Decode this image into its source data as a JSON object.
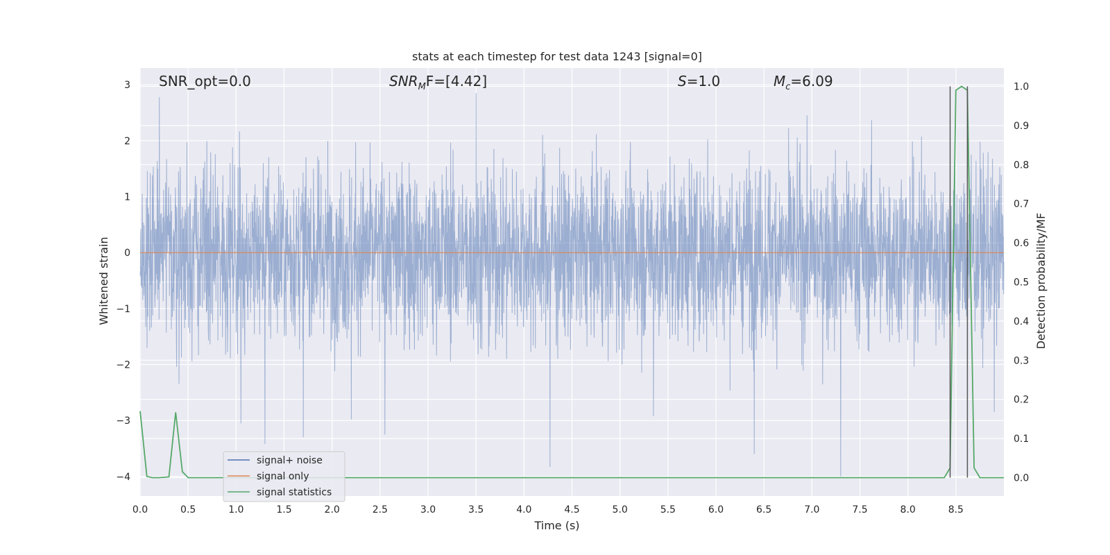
{
  "chart_data": {
    "type": "line",
    "title": "stats at each timestep for test data 1243 [signal=0]",
    "xlabel": "Time (s)",
    "ylabel": "Whitened strain",
    "y2label": "Detection probability/MF",
    "xlim": [
      0.0,
      9.0
    ],
    "ylim": [
      -4.35,
      3.3
    ],
    "y2lim": [
      -0.047,
      1.047
    ],
    "x_ticks": [
      0.0,
      0.5,
      1.0,
      1.5,
      2.0,
      2.5,
      3.0,
      3.5,
      4.0,
      4.5,
      5.0,
      5.5,
      6.0,
      6.5,
      7.0,
      7.5,
      8.0,
      8.5
    ],
    "x_tick_labels": [
      "0.0",
      "0.5",
      "1.0",
      "1.5",
      "2.0",
      "2.5",
      "3.0",
      "3.5",
      "4.0",
      "4.5",
      "5.0",
      "5.5",
      "6.0",
      "6.5",
      "7.0",
      "7.5",
      "8.0",
      "8.5"
    ],
    "y_ticks": [
      3,
      2,
      1,
      0,
      -1,
      -2,
      -3,
      -4
    ],
    "y_tick_labels": [
      "3",
      "2",
      "1",
      "0",
      "−1",
      "−2",
      "−3",
      "−4"
    ],
    "y2_ticks": [
      1.0,
      0.9,
      0.8,
      0.7,
      0.6,
      0.5,
      0.4,
      0.3,
      0.2,
      0.1,
      0.0
    ],
    "y2_tick_labels": [
      "1.0",
      "0.9",
      "0.8",
      "0.7",
      "0.6",
      "0.5",
      "0.4",
      "0.3",
      "0.2",
      "0.1",
      "0.0"
    ],
    "grid": true,
    "legend": {
      "placement": "lower-left",
      "entries": [
        {
          "label": "signal+ noise",
          "color": "#4c72b0"
        },
        {
          "label": "signal only",
          "color": "#dd8452"
        },
        {
          "label": "signal statistics",
          "color": "#55a868"
        }
      ]
    },
    "annotations": [
      {
        "prefix": "SNR_opt=0.0",
        "sub": "",
        "suffix": ""
      },
      {
        "prefix": "SNR",
        "sub": "M",
        "suffix": "F=[4.42]"
      },
      {
        "prefix": "S",
        "sub": "",
        "suffix": "=1.0"
      },
      {
        "prefix": "M",
        "sub": "c",
        "suffix": "=6.09"
      }
    ],
    "series": [
      {
        "name": "signal+ noise",
        "color": "#4c72b0",
        "note_kind": "dense random noise",
        "x_range": [
          0.0,
          9.0
        ],
        "outliers": [
          {
            "x": 0.2,
            "y": 2.78
          },
          {
            "x": 1.05,
            "y": -3.05
          },
          {
            "x": 1.3,
            "y": -3.42
          },
          {
            "x": 1.7,
            "y": -3.3
          },
          {
            "x": 2.2,
            "y": -2.98
          },
          {
            "x": 2.55,
            "y": -3.25
          },
          {
            "x": 3.5,
            "y": 2.85
          },
          {
            "x": 4.27,
            "y": -3.83
          },
          {
            "x": 5.35,
            "y": -2.92
          },
          {
            "x": 6.4,
            "y": -3.6
          },
          {
            "x": 7.3,
            "y": -4.0
          },
          {
            "x": 8.9,
            "y": -2.85
          }
        ]
      },
      {
        "name": "signal only",
        "color": "#dd8452",
        "x": [
          0.0,
          9.0
        ],
        "y": [
          0.0,
          0.0
        ]
      },
      {
        "name": "signal statistics",
        "color": "#55a868",
        "axis": "y2",
        "x": [
          0.0,
          0.07,
          0.13,
          0.2,
          0.3,
          0.37,
          0.44,
          0.5,
          1.0,
          2.0,
          3.0,
          4.0,
          5.0,
          6.0,
          7.0,
          8.0,
          8.38,
          8.44,
          8.5,
          8.56,
          8.62,
          8.69,
          8.75,
          9.0
        ],
        "y": [
          0.17,
          0.003,
          0.0,
          0.0,
          0.002,
          0.167,
          0.015,
          0.0,
          0.0,
          0.0,
          0.0,
          0.0,
          0.0,
          0.0,
          0.0,
          0.0,
          0.0,
          0.025,
          0.99,
          1.0,
          0.99,
          0.025,
          0.0,
          0.0
        ]
      }
    ],
    "vlines": [
      {
        "x": 8.44,
        "axis": "y2",
        "y": [
          0.0,
          1.0
        ],
        "color": "#555555"
      },
      {
        "x": 8.62,
        "axis": "y2",
        "y": [
          0.0,
          1.0
        ],
        "color": "#555555"
      }
    ]
  }
}
